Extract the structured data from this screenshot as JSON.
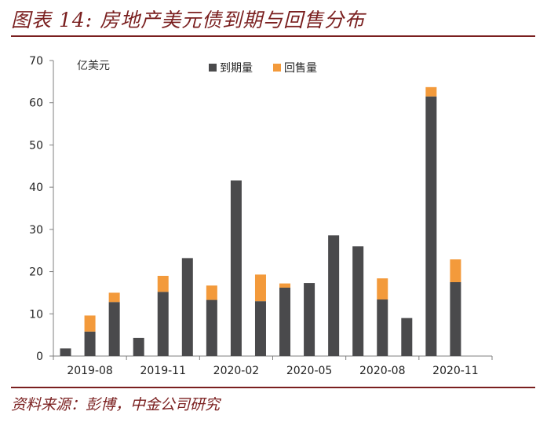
{
  "figure": {
    "title": "图表 14: 房地产美元债到期与回售分布",
    "source": "资料来源：彭博，中金公司研究"
  },
  "colors": {
    "maturity": "#4a4a4c",
    "putback": "#f39a3b",
    "accent": "#7a1f1f",
    "axis": "#7f7f7f"
  },
  "chart_data": {
    "type": "bar",
    "stacked": true,
    "unit": "亿美元",
    "categories": [
      "2019-07",
      "2019-08",
      "2019-09",
      "2019-10",
      "2019-11",
      "2019-12",
      "2020-01",
      "2020-02",
      "2020-03",
      "2020-04",
      "2020-05",
      "2020-06",
      "2020-07",
      "2020-08",
      "2020-09",
      "2020-10",
      "2020-11",
      "2020-12"
    ],
    "x_tick_labels": [
      "2019-08",
      "2019-11",
      "2020-02",
      "2020-05",
      "2020-08",
      "2020-11"
    ],
    "series": [
      {
        "name": "到期量",
        "values": [
          1.8,
          5.8,
          12.8,
          4.3,
          15.2,
          23.2,
          13.3,
          41.6,
          13.0,
          16.2,
          17.3,
          28.6,
          26.0,
          13.4,
          9.0,
          61.5,
          17.5,
          0
        ]
      },
      {
        "name": "回售量",
        "values": [
          0,
          3.8,
          2.2,
          0,
          3.8,
          0,
          3.4,
          0,
          6.3,
          1.0,
          0,
          0,
          0,
          5.0,
          0,
          2.2,
          5.4,
          0
        ]
      }
    ],
    "ylim": [
      0,
      70
    ],
    "y_ticks": [
      0,
      10,
      20,
      30,
      40,
      50,
      60,
      70
    ],
    "legend_position": "top",
    "grid": false
  }
}
